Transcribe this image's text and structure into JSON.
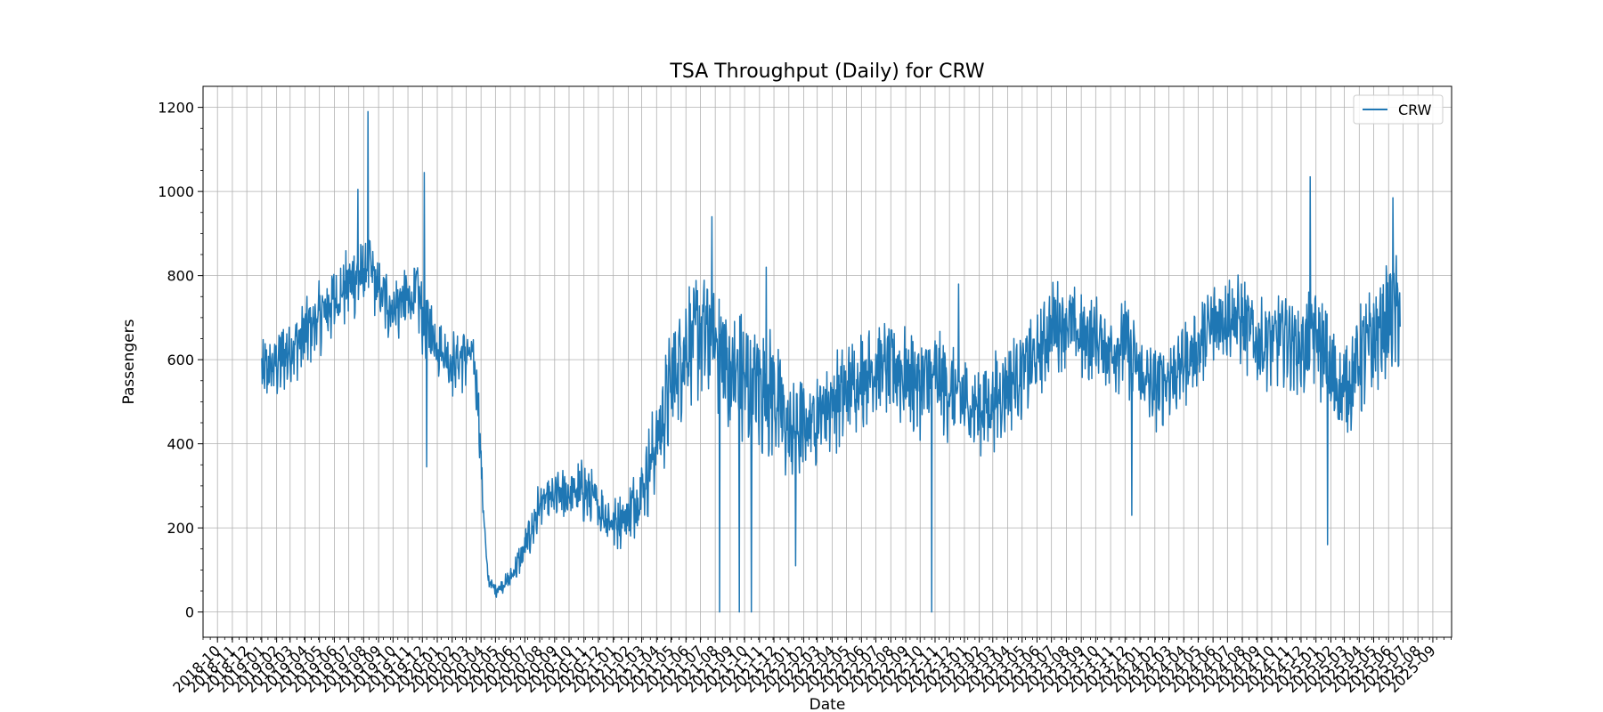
{
  "chart_data": {
    "type": "line",
    "title": "TSA Throughput (Daily) for CRW",
    "xlabel": "Date",
    "ylabel": "Passengers",
    "ylim": [
      -60,
      1250
    ],
    "xlim": [
      "2018-09-01",
      "2025-10-10"
    ],
    "yticks": [
      0,
      200,
      400,
      600,
      800,
      1000,
      1200
    ],
    "xtick_labels": [
      "2018-10",
      "2018-11",
      "2018-12",
      "2019-01",
      "2019-02",
      "2019-03",
      "2019-04",
      "2019-05",
      "2019-06",
      "2019-07",
      "2019-08",
      "2019-09",
      "2019-10",
      "2019-11",
      "2019-12",
      "2020-01",
      "2020-02",
      "2020-03",
      "2020-04",
      "2020-05",
      "2020-06",
      "2020-07",
      "2020-08",
      "2020-09",
      "2020-10",
      "2020-11",
      "2020-12",
      "2021-01",
      "2021-02",
      "2021-03",
      "2021-04",
      "2021-05",
      "2021-06",
      "2021-07",
      "2021-08",
      "2021-09",
      "2021-10",
      "2021-11",
      "2021-12",
      "2022-01",
      "2022-02",
      "2022-03",
      "2022-04",
      "2022-05",
      "2022-06",
      "2022-07",
      "2022-08",
      "2022-09",
      "2022-10",
      "2022-11",
      "2022-12",
      "2023-01",
      "2023-02",
      "2023-03",
      "2023-04",
      "2023-05",
      "2023-06",
      "2023-07",
      "2023-08",
      "2023-09",
      "2023-10",
      "2023-11",
      "2023-12",
      "2024-01",
      "2024-02",
      "2024-03",
      "2024-04",
      "2024-05",
      "2024-06",
      "2024-07",
      "2024-08",
      "2024-09",
      "2024-10",
      "2024-11",
      "2024-12",
      "2025-01",
      "2025-02",
      "2025-03",
      "2025-04",
      "2025-05",
      "2025-06",
      "2025-07",
      "2025-08",
      "2025-09"
    ],
    "grid": true,
    "legend_position": "top-right",
    "series": [
      {
        "name": "CRW",
        "color": "#1f77b4",
        "x": [
          "2019-01-01",
          "2019-02-01",
          "2019-03-01",
          "2019-04-01",
          "2019-05-01",
          "2019-06-01",
          "2019-07-01",
          "2019-08-01",
          "2019-08-10",
          "2019-09-01",
          "2019-10-01",
          "2019-11-01",
          "2019-11-20",
          "2019-12-01",
          "2020-01-01",
          "2020-02-01",
          "2020-03-01",
          "2020-03-15",
          "2020-03-25",
          "2020-04-05",
          "2020-04-15",
          "2020-05-01",
          "2020-06-01",
          "2020-07-01",
          "2020-08-01",
          "2020-09-01",
          "2020-10-01",
          "2020-11-01",
          "2020-12-01",
          "2021-01-01",
          "2021-02-01",
          "2021-03-01",
          "2021-04-01",
          "2021-05-01",
          "2021-06-01",
          "2021-07-01",
          "2021-08-01",
          "2021-09-01",
          "2021-10-01",
          "2021-11-01",
          "2021-12-01",
          "2022-01-01",
          "2022-02-01",
          "2022-03-01",
          "2022-04-01",
          "2022-05-01",
          "2022-06-01",
          "2022-07-01",
          "2022-08-01",
          "2022-09-01",
          "2022-10-01",
          "2022-11-01",
          "2022-12-01",
          "2023-01-01",
          "2023-02-01",
          "2023-03-01",
          "2023-04-01",
          "2023-05-01",
          "2023-06-01",
          "2023-07-01",
          "2023-08-01",
          "2023-09-01",
          "2023-10-01",
          "2023-11-01",
          "2023-12-01",
          "2024-01-01",
          "2024-02-01",
          "2024-03-01",
          "2024-04-01",
          "2024-05-01",
          "2024-06-01",
          "2024-07-01",
          "2024-08-01",
          "2024-09-01",
          "2024-10-01",
          "2024-11-01",
          "2024-12-01",
          "2025-01-01",
          "2025-02-01",
          "2025-03-01",
          "2025-04-01",
          "2025-05-01",
          "2025-06-01",
          "2025-06-25"
        ],
        "y": [
          560,
          590,
          620,
          660,
          700,
          740,
          780,
          800,
          830,
          760,
          720,
          740,
          760,
          700,
          640,
          590,
          610,
          600,
          520,
          260,
          80,
          50,
          80,
          150,
          250,
          270,
          280,
          290,
          250,
          210,
          230,
          290,
          400,
          540,
          640,
          660,
          650,
          560,
          540,
          530,
          520,
          420,
          440,
          470,
          500,
          520,
          560,
          580,
          580,
          560,
          540,
          560,
          520,
          500,
          480,
          500,
          540,
          570,
          600,
          680,
          690,
          650,
          650,
          620,
          640,
          560,
          530,
          560,
          590,
          630,
          680,
          710,
          690,
          640,
          640,
          660,
          620,
          660,
          560,
          520,
          600,
          640,
          700,
          720
        ],
        "spread": [
          110,
          110,
          110,
          110,
          115,
          115,
          115,
          110,
          110,
          110,
          110,
          110,
          110,
          110,
          105,
          105,
          105,
          100,
          90,
          40,
          20,
          20,
          30,
          60,
          90,
          90,
          90,
          100,
          90,
          80,
          90,
          120,
          160,
          180,
          200,
          200,
          200,
          220,
          230,
          210,
          200,
          160,
          160,
          160,
          160,
          150,
          150,
          160,
          160,
          160,
          160,
          160,
          150,
          150,
          150,
          150,
          150,
          140,
          140,
          140,
          140,
          140,
          140,
          140,
          140,
          140,
          130,
          130,
          130,
          140,
          140,
          140,
          140,
          140,
          140,
          150,
          150,
          160,
          170,
          170,
          170,
          180,
          180,
          180
        ],
        "spikes": [
          {
            "date": "2019-08-10",
            "value": 1190
          },
          {
            "date": "2019-07-20",
            "value": 1005
          },
          {
            "date": "2019-12-05",
            "value": 1045
          },
          {
            "date": "2019-12-10",
            "value": 345
          },
          {
            "date": "2021-07-25",
            "value": 940
          },
          {
            "date": "2021-08-10",
            "value": 0
          },
          {
            "date": "2021-09-20",
            "value": 0
          },
          {
            "date": "2021-10-15",
            "value": 0
          },
          {
            "date": "2021-11-15",
            "value": 820
          },
          {
            "date": "2022-01-15",
            "value": 110
          },
          {
            "date": "2022-10-25",
            "value": 0
          },
          {
            "date": "2022-12-20",
            "value": 780
          },
          {
            "date": "2023-12-15",
            "value": 230
          },
          {
            "date": "2024-12-20",
            "value": 1035
          },
          {
            "date": "2025-01-25",
            "value": 160
          },
          {
            "date": "2025-06-10",
            "value": 985
          }
        ]
      }
    ]
  }
}
